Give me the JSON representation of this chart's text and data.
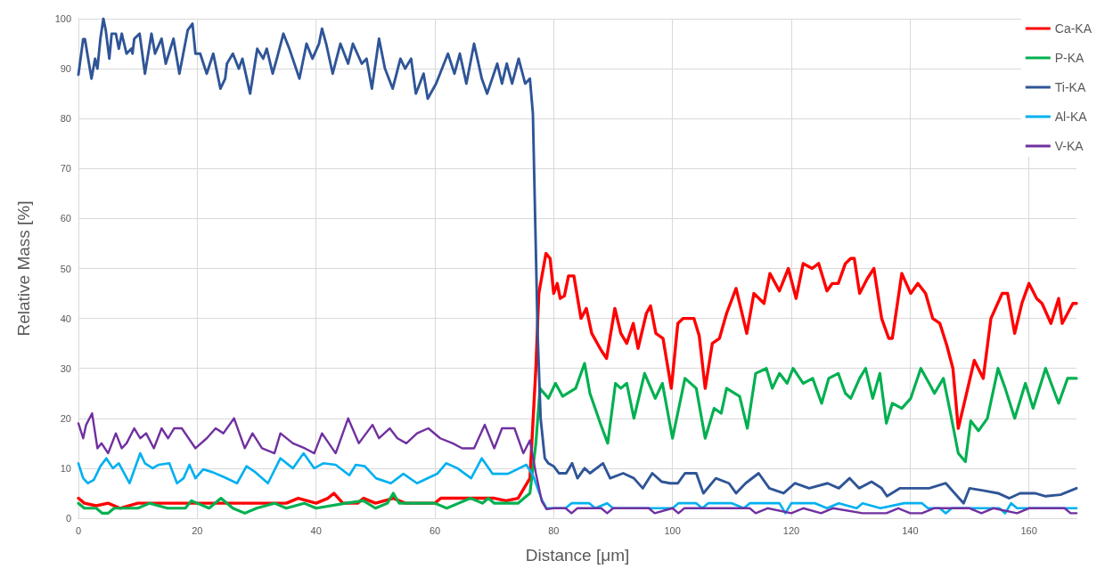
{
  "chart_data": {
    "type": "line",
    "xlabel": "Distance [μm]",
    "ylabel": "Relative Mass [%]",
    "xlim": [
      0,
      168
    ],
    "xticks": [
      0,
      20,
      40,
      60,
      80,
      100,
      120,
      140,
      160
    ],
    "ylim": [
      0,
      100
    ],
    "yticks": [
      0,
      10,
      20,
      30,
      40,
      50,
      60,
      70,
      80,
      90,
      100
    ],
    "grid": true,
    "legend": "top right",
    "series": [
      {
        "name": "Ca-KA",
        "color": "#ff0000",
        "x": [
          0,
          1,
          3,
          5,
          7,
          10,
          15,
          20,
          25,
          30,
          35,
          37,
          40,
          42,
          43,
          44.5,
          47,
          48,
          50,
          53,
          55,
          58,
          60,
          61,
          65,
          68,
          70,
          72,
          74,
          75,
          76,
          77,
          77.5,
          78.7,
          79.4,
          80,
          80.6,
          81.1,
          81.8,
          82.5,
          83.4,
          84.6,
          85.5,
          86.4,
          88,
          88.9,
          90.3,
          91.3,
          92.3,
          93.4,
          94.2,
          95.6,
          96.3,
          97.2,
          98.4,
          99.8,
          100.9,
          101.8,
          103.6,
          104.5,
          105.5,
          106.7,
          107.9,
          109.1,
          110.7,
          112.5,
          113.7,
          115.4,
          116.4,
          118,
          119.5,
          120.8,
          122,
          123.5,
          124.6,
          126,
          126.9,
          127.9,
          129.1,
          130,
          130.6,
          131.5,
          132.8,
          133.9,
          135.2,
          136.4,
          137,
          138.6,
          140.1,
          141.3,
          142.6,
          143.8,
          145,
          146.2,
          147.2,
          148.1,
          149.3,
          150.8,
          152.3,
          153.6,
          155.5,
          156.4,
          157.6,
          158.8,
          160,
          161.3,
          162.2,
          163.7,
          165,
          165.6,
          166.5,
          167.4,
          168
        ],
        "values": [
          4,
          3,
          2.5,
          3,
          2,
          3,
          3,
          3,
          3,
          3,
          3,
          4,
          3,
          4,
          5,
          3,
          3,
          4,
          3,
          4,
          3,
          3,
          3,
          4,
          4,
          4,
          4,
          3.5,
          4,
          6,
          8,
          30,
          45,
          53,
          52,
          45,
          47,
          44,
          44.5,
          48.5,
          48.5,
          40,
          42,
          37,
          33.6,
          32,
          42,
          37,
          35,
          39,
          34,
          41,
          42.5,
          37,
          36,
          26,
          39,
          40,
          40,
          36.5,
          26,
          35,
          36,
          41,
          46,
          37,
          45,
          43,
          49,
          45.5,
          50,
          44,
          51,
          50,
          51,
          45.5,
          47,
          47,
          51,
          52,
          52,
          45,
          48,
          50,
          40,
          36,
          36,
          49,
          45,
          47,
          45,
          40,
          39,
          34.5,
          30,
          18,
          24,
          31.6,
          28,
          40,
          45,
          45,
          37,
          43,
          47,
          44,
          43,
          39,
          44,
          39,
          41,
          43,
          43
        ]
      },
      {
        "name": "P-KA",
        "color": "#00b050",
        "x": [
          0,
          1,
          3,
          4,
          5,
          6,
          10,
          12,
          15,
          18,
          19,
          20,
          22,
          24,
          25,
          26,
          28,
          30,
          33,
          35,
          38,
          40,
          45,
          48,
          50,
          52,
          53,
          54,
          57,
          60,
          62,
          64,
          66,
          68,
          69,
          70,
          72,
          74,
          75,
          76,
          77,
          77.7,
          79.1,
          80.3,
          81.5,
          83.7,
          85.2,
          86.1,
          88,
          89.1,
          90.4,
          91.3,
          92.3,
          93.5,
          95.3,
          97.1,
          98.3,
          100,
          102.1,
          104,
          105.5,
          107,
          108.2,
          109.1,
          111.3,
          112.6,
          114,
          115.8,
          116.8,
          118,
          119.3,
          120.3,
          122,
          123.6,
          125.1,
          126.3,
          127.9,
          129.1,
          130,
          131.5,
          132.5,
          133.7,
          134.9,
          136,
          137,
          138.6,
          140.1,
          141.8,
          143.2,
          144.1,
          145.6,
          146.8,
          148.1,
          149.3,
          150.2,
          151.5,
          153,
          154.8,
          156,
          157.6,
          159.4,
          160.7,
          162.8,
          165,
          166.5,
          168
        ],
        "values": [
          3,
          2,
          2,
          1,
          1,
          2,
          2,
          3,
          2,
          2,
          3.5,
          3,
          2,
          4,
          3,
          2,
          1,
          2,
          3,
          2,
          3,
          2,
          3,
          3.5,
          2,
          3,
          5,
          3,
          3,
          3,
          2,
          3,
          4,
          3,
          4,
          3,
          3,
          3,
          4,
          5,
          15,
          26,
          24,
          27,
          24.4,
          26,
          31,
          25,
          18.5,
          15,
          27,
          26,
          27,
          20,
          29,
          24,
          27,
          16,
          28,
          26,
          16,
          22,
          21,
          26,
          24.4,
          18,
          29,
          30,
          26,
          29,
          27,
          30,
          27,
          28,
          23,
          28,
          29,
          25,
          24,
          28,
          30,
          24,
          29,
          19,
          23,
          22,
          24,
          30,
          27,
          25,
          28,
          21,
          13,
          11.3,
          19.5,
          17.5,
          20,
          30,
          26,
          20,
          27,
          22,
          30,
          23,
          28,
          28
        ]
      },
      {
        "name": "Ti-KA",
        "color": "#2f5597",
        "x": [
          0,
          0.8,
          1.1,
          1.5,
          2.2,
          2.8,
          3.2,
          3.7,
          4.2,
          4.6,
          5.2,
          5.6,
          6.3,
          6.8,
          7.3,
          8.1,
          8.9,
          9.1,
          9.4,
          10.3,
          11.2,
          12.3,
          12.9,
          14,
          14.7,
          16,
          17,
          18.4,
          19.2,
          19.7,
          20.5,
          21.6,
          22.7,
          23.9,
          24.7,
          25,
          26,
          27,
          27.6,
          28.9,
          30.1,
          31.1,
          31.7,
          32.7,
          33.4,
          34.5,
          35.5,
          37.2,
          38.4,
          39.4,
          40.5,
          41,
          41.7,
          42.8,
          44.1,
          45.4,
          46.2,
          47.7,
          48.5,
          49.4,
          50.6,
          51.6,
          52.9,
          54.2,
          55,
          56,
          56.8,
          58.1,
          58.8,
          60.2,
          62.2,
          63.3,
          64.2,
          65.3,
          66.6,
          67.9,
          68.8,
          70.5,
          71.3,
          72.1,
          73,
          74.1,
          75.2,
          76,
          76.5,
          77.3,
          77.8,
          78.5,
          79.1,
          80,
          80.9,
          82.1,
          83.1,
          84,
          85.2,
          86.1,
          88.3,
          89.5,
          91.7,
          93.5,
          95,
          96.6,
          98.2,
          99.6,
          100.9,
          102.1,
          104,
          105.2,
          107.3,
          109.5,
          110.7,
          112.3,
          114.5,
          116.3,
          118.7,
          120.6,
          123,
          126.1,
          128,
          129.8,
          131.4,
          133.5,
          135.2,
          136.1,
          138.3,
          141.3,
          143.2,
          146,
          147.5,
          149,
          150,
          152.5,
          154.8,
          156.7,
          158.5,
          161,
          162.8,
          165.3,
          168
        ],
        "values": [
          88.8,
          95.9,
          95.9,
          93,
          88,
          92,
          90,
          96,
          100,
          97.7,
          92,
          97,
          97,
          94,
          97,
          93,
          94,
          93,
          96,
          97,
          89,
          97,
          93,
          96,
          91,
          96,
          89,
          97.7,
          99,
          93,
          93,
          89,
          93,
          86,
          88,
          91,
          93,
          90,
          92,
          85,
          94,
          92,
          94,
          89,
          92,
          97,
          94,
          88,
          95,
          92,
          95,
          98,
          95,
          89,
          95,
          91,
          95,
          91,
          92,
          86,
          96,
          90,
          86,
          92,
          90,
          92,
          85,
          89,
          84,
          87,
          93,
          89,
          93,
          87,
          95,
          88,
          85,
          91,
          87,
          91,
          87,
          92,
          87,
          88,
          81,
          37,
          20,
          12,
          11,
          10.4,
          9,
          9,
          11,
          8,
          10,
          9,
          11,
          8,
          9,
          8,
          6,
          9,
          7.3,
          7,
          7,
          9,
          9,
          5,
          8,
          7,
          5,
          7,
          9,
          6,
          5,
          7,
          6,
          7,
          6,
          8,
          6,
          7.3,
          6,
          4.4,
          6,
          6,
          6,
          7,
          5,
          3,
          6,
          5.5,
          5,
          4,
          5,
          5,
          4.4,
          4.7,
          6
        ]
      },
      {
        "name": "Al-KA",
        "color": "#00b0f0",
        "x": [
          0,
          0.8,
          1.6,
          2.6,
          3.7,
          4.7,
          5.8,
          6.8,
          8.6,
          10.4,
          11.2,
          12.5,
          13.5,
          15.3,
          16.6,
          17.7,
          18.7,
          19.7,
          21,
          22.6,
          24.4,
          26.7,
          28.3,
          29.8,
          31.9,
          34,
          36.1,
          37.9,
          39.7,
          41.2,
          43.3,
          45.6,
          46.7,
          48.2,
          50.1,
          52.6,
          54.7,
          57,
          60.4,
          61.9,
          63.8,
          66.1,
          67.9,
          69.7,
          72.3,
          75.4,
          76.5,
          78,
          78.8,
          80,
          82,
          83,
          86,
          87,
          89,
          90,
          98,
          100,
          101,
          104,
          105,
          106,
          110,
          112,
          113,
          118,
          119,
          120,
          124,
          126,
          128,
          131,
          132,
          135,
          139,
          142,
          143,
          145,
          146,
          147,
          155,
          156,
          157,
          158,
          160,
          168
        ],
        "values": [
          11,
          8,
          7,
          7.7,
          10.4,
          12,
          10,
          11,
          7,
          13,
          11,
          10,
          10.7,
          11,
          7,
          8,
          10.7,
          8,
          9.8,
          9.2,
          8.3,
          7,
          10.4,
          9.2,
          7,
          12,
          10,
          13,
          10,
          11,
          10.7,
          8.6,
          10.7,
          10.4,
          8,
          7,
          8.9,
          7,
          8.9,
          11,
          10,
          8,
          12,
          8.9,
          8.9,
          10.7,
          8.6,
          3.7,
          2,
          2,
          2,
          3,
          3,
          2,
          3,
          2,
          2,
          2,
          3,
          3,
          2,
          3,
          3,
          2,
          3,
          3,
          1,
          3,
          3,
          2,
          3,
          2,
          3,
          2,
          3,
          3,
          2,
          2,
          1,
          2,
          2,
          1,
          3,
          2,
          2,
          2
        ]
      },
      {
        "name": "V-KA",
        "color": "#7030a0",
        "x": [
          0,
          0.8,
          1.3,
          2.3,
          3.2,
          3.9,
          5,
          6.3,
          7.3,
          8.1,
          9.4,
          10.4,
          11.4,
          12.7,
          14,
          15.1,
          16.1,
          17.4,
          19.7,
          21.6,
          23.1,
          24.4,
          26.2,
          28,
          29.3,
          30.9,
          33,
          34,
          36.1,
          38.1,
          39.7,
          41,
          43.3,
          45.4,
          47.2,
          49.5,
          50.6,
          52.4,
          53.7,
          55.2,
          57,
          58.9,
          60.9,
          63,
          64.6,
          66.6,
          68.4,
          70,
          71.3,
          73.4,
          74.9,
          76,
          77,
          78,
          78.8,
          80,
          82,
          83,
          84,
          88,
          89,
          90,
          96,
          97,
          100,
          101,
          102,
          110,
          113,
          114,
          116,
          120,
          122,
          125,
          127,
          132,
          136,
          138,
          140,
          142,
          144,
          150,
          152,
          154,
          158,
          160,
          166,
          167,
          168
        ],
        "values": [
          19,
          16,
          18.7,
          21,
          14,
          15,
          13,
          17,
          14,
          15,
          18,
          16,
          17,
          14,
          18,
          16,
          18,
          18,
          14,
          16,
          18,
          17,
          20,
          14,
          17,
          14,
          13,
          17,
          15,
          14,
          13,
          17,
          13,
          20,
          15,
          18.7,
          16,
          18,
          16,
          15,
          17,
          18,
          16,
          15,
          14,
          14,
          18.7,
          14,
          18,
          18,
          13,
          15.6,
          9,
          3.4,
          1.8,
          2,
          2,
          1,
          2,
          2,
          1,
          2,
          2,
          1,
          2,
          1,
          2,
          2,
          2,
          1,
          2,
          1,
          2,
          1,
          2,
          1,
          1,
          2,
          1,
          1,
          2,
          2,
          1,
          2,
          1,
          2,
          2,
          1,
          1
        ]
      }
    ]
  }
}
